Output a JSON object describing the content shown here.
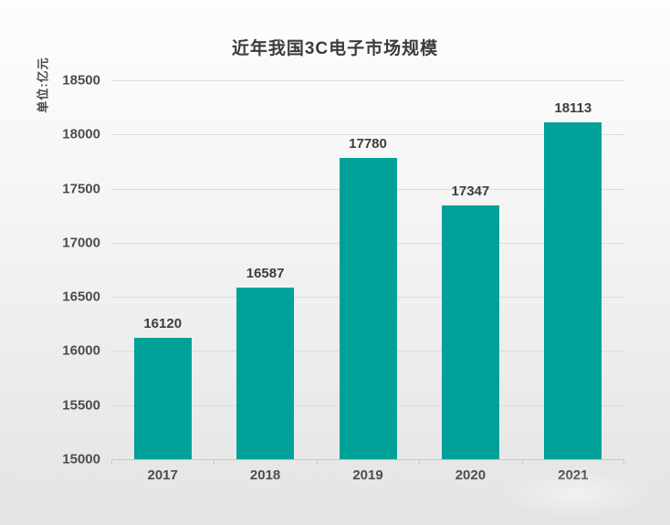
{
  "page": {
    "background_top": "#fdfdfd",
    "background_bottom": "#e4e4e4"
  },
  "chart_data": {
    "type": "bar",
    "title": "近年我国3C电子市场规模",
    "unit_label": "单位:亿元",
    "categories": [
      "2017",
      "2018",
      "2019",
      "2020",
      "2021"
    ],
    "values": [
      16120,
      16587,
      17780,
      17347,
      18113
    ],
    "xlabel": "",
    "ylabel": "单位:亿元",
    "ylim": [
      15000,
      18500
    ],
    "ytick_step": 500,
    "yticks": [
      15000,
      15500,
      16000,
      16500,
      17000,
      17500,
      18000,
      18500
    ],
    "grid": true,
    "legend": "none",
    "bar_color": "#00a199",
    "title_color": "#3c3c3c",
    "label_color": "#3d3d3d",
    "tick_color": "#4d4d4d",
    "grid_color": "#dcdcdc",
    "axis_color": "#c8c8c8"
  }
}
